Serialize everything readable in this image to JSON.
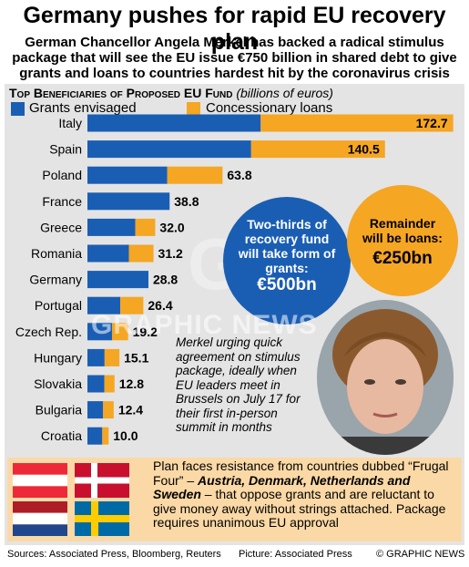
{
  "header": {
    "title": "Germany pushes for rapid EU recovery plan",
    "subtitle": "German Chancellor Angela Merkel has backed a radical stimulus package that will see the EU issue €750 billion in shared debt to give grants and loans to countries hardest hit by the coronavirus crisis"
  },
  "chart_data": {
    "type": "bar",
    "orientation": "horizontal",
    "stacked": true,
    "title": "Top Beneficiaries of Proposed EU Fund",
    "unit": "(billions of euros)",
    "categories": [
      "Italy",
      "Spain",
      "Poland",
      "France",
      "Greece",
      "Romania",
      "Germany",
      "Portugal",
      "Czech Rep.",
      "Hungary",
      "Slovakia",
      "Bulgaria",
      "Croatia"
    ],
    "series": [
      {
        "name": "Grants envisaged",
        "color": "#1a5eb4",
        "values": [
          81.8,
          77.3,
          37.7,
          38.8,
          22.6,
          19.6,
          28.8,
          15.5,
          11.6,
          8.1,
          8.0,
          7.4,
          7.0
        ]
      },
      {
        "name": "Concessionary loans",
        "color": "#f5a623",
        "values": [
          90.9,
          63.2,
          26.1,
          0,
          9.4,
          11.6,
          0,
          10.9,
          7.6,
          7.0,
          4.8,
          5.0,
          3.0
        ]
      }
    ],
    "totals": [
      "172.7",
      "140.5",
      "63.8",
      "38.8",
      "32.0",
      "31.2",
      "28.8",
      "26.4",
      "19.2",
      "15.1",
      "12.8",
      "12.4",
      "10.0"
    ],
    "xlim": [
      0,
      175
    ]
  },
  "callouts": {
    "grants_text": "Two-thirds of recovery fund will take form of grants:",
    "grants_value": "€500bn",
    "loans_text": "Remainder will be loans:",
    "loans_value": "€250bn"
  },
  "photo_caption": "Merkel urging quick agreement on stimulus package, ideally when EU leaders meet in Brussels on July 17 for their first in-person summit in months",
  "info": {
    "text_before": "Plan faces resistance from countries dubbed “Frugal Four” – ",
    "countries": "Austria, Denmark, Netherlands and Sweden",
    "text_after": " – that oppose grants and are reluctant to give money away without strings attached. Package requires unanimous EU approval",
    "flags": [
      "austria-flag",
      "denmark-flag",
      "netherlands-flag",
      "sweden-flag"
    ]
  },
  "footer": {
    "sources": "Sources: Associated Press, Bloomberg, Reuters",
    "picture": "Picture: Associated Press",
    "credit": "© GRAPHIC NEWS"
  },
  "watermark": "GRAPHIC NEWS",
  "watermark_logo": "GN",
  "colors": {
    "grants": "#1a5eb4",
    "loans": "#f5a623",
    "panel": "#e4e4e4",
    "info_box": "#fbd9a6"
  }
}
